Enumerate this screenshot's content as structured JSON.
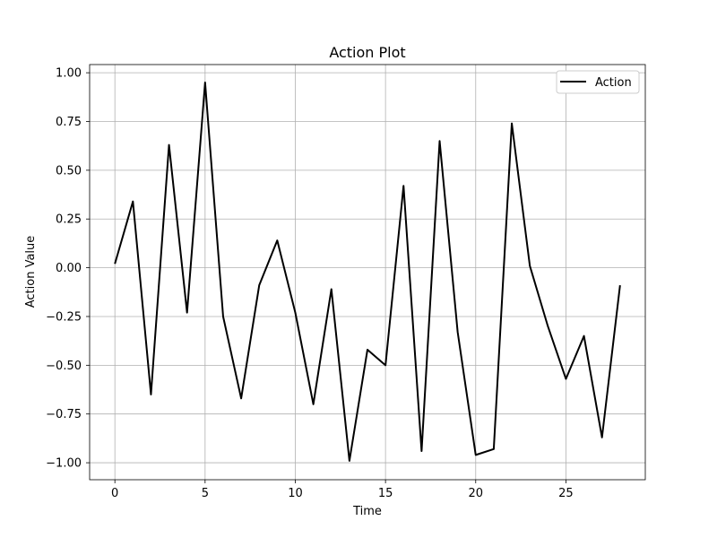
{
  "chart_data": {
    "type": "line",
    "title": "Action Plot",
    "xlabel": "Time",
    "ylabel": "Action Value",
    "xlim": [
      -1.4,
      29.4
    ],
    "ylim": [
      -1.087,
      1.042
    ],
    "xticks": [
      0,
      5,
      10,
      15,
      20,
      25
    ],
    "xtick_labels": [
      "0",
      "5",
      "10",
      "15",
      "20",
      "25"
    ],
    "yticks": [
      1.0,
      0.75,
      0.5,
      0.25,
      0.0,
      -0.25,
      -0.5,
      -0.75,
      -1.0
    ],
    "ytick_labels": [
      "1.00",
      "0.75",
      "0.50",
      "0.25",
      "0.00",
      "−0.25",
      "−0.50",
      "−0.75",
      "−1.00"
    ],
    "grid": true,
    "legend_position": "top-right",
    "series": [
      {
        "name": "Action",
        "color": "#000000",
        "x": [
          0,
          1,
          2,
          3,
          4,
          5,
          6,
          7,
          8,
          9,
          10,
          11,
          12,
          13,
          14,
          15,
          16,
          17,
          18,
          19,
          20,
          21,
          22,
          23,
          24,
          25,
          26,
          27,
          28
        ],
        "y": [
          0.02,
          0.34,
          -0.65,
          0.63,
          -0.23,
          0.95,
          -0.25,
          -0.67,
          -0.09,
          0.14,
          -0.23,
          -0.7,
          -0.11,
          -0.99,
          -0.42,
          -0.5,
          0.42,
          -0.94,
          0.65,
          -0.33,
          -0.96,
          -0.93,
          0.74,
          0.01,
          -0.3,
          -0.57,
          -0.35,
          -0.87,
          -0.09
        ]
      }
    ]
  }
}
